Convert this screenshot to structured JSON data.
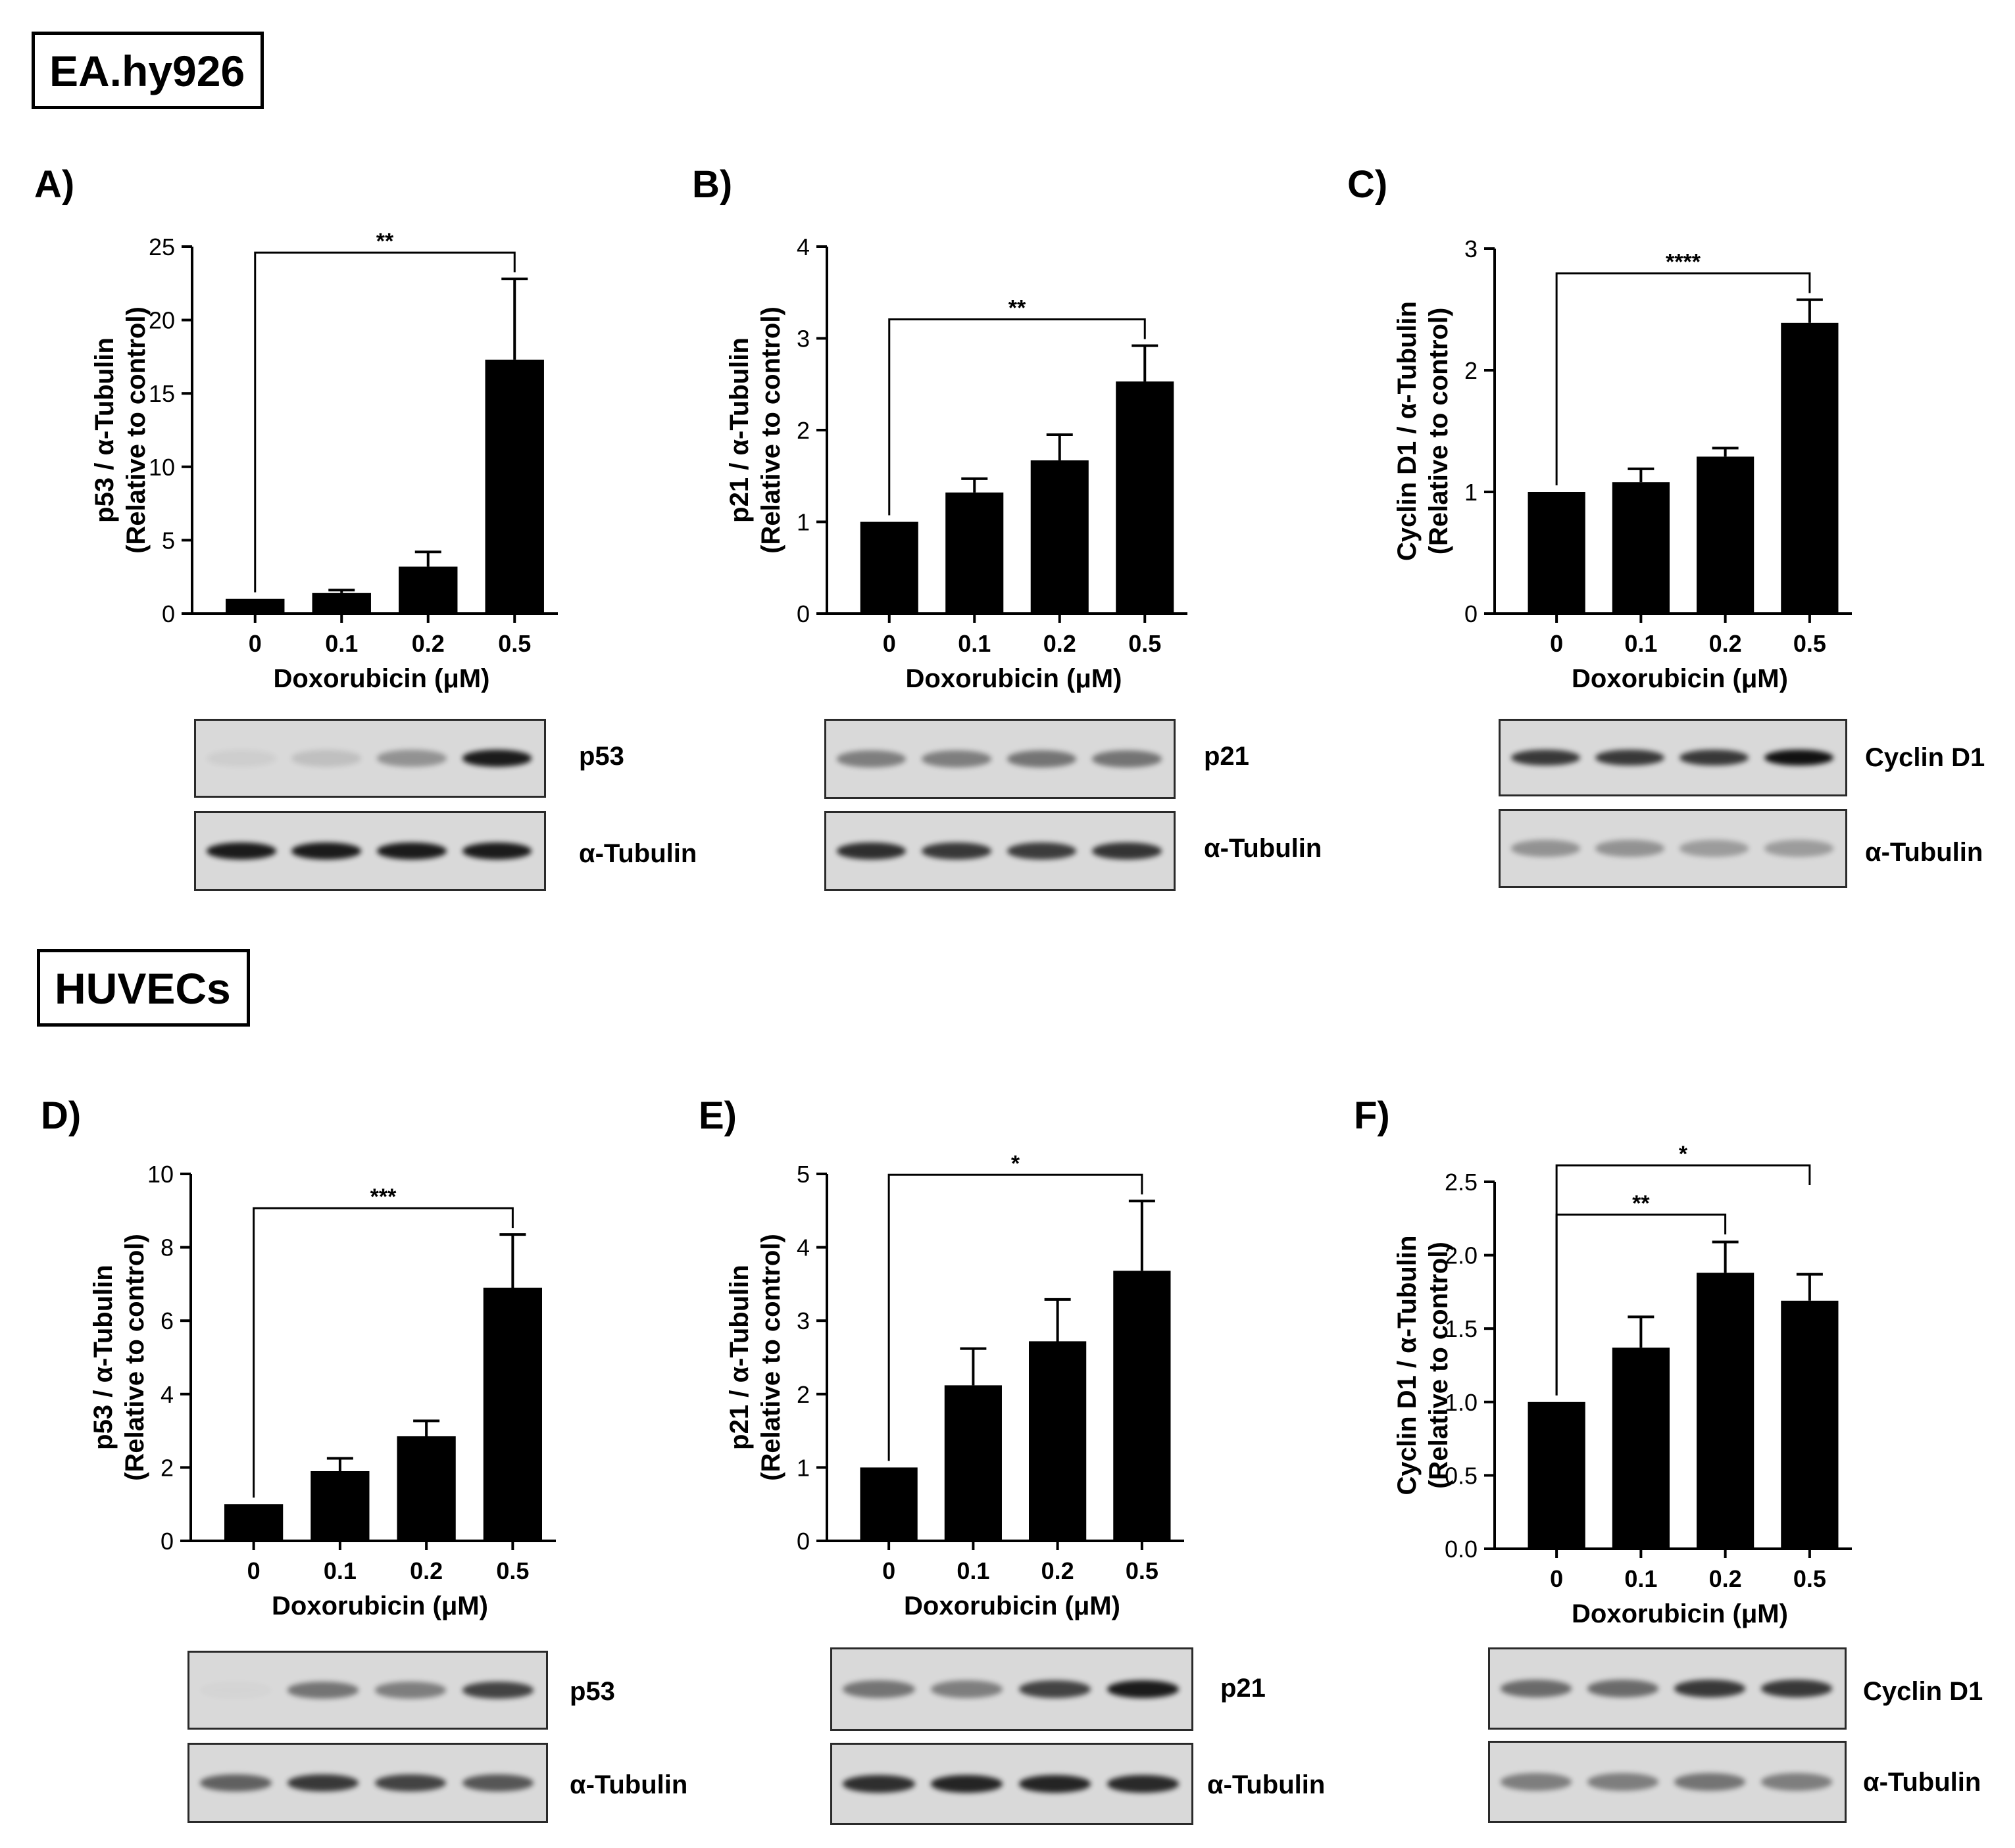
{
  "cell_lines": [
    {
      "name": "EA.hy926"
    },
    {
      "name": "HUVECs"
    }
  ],
  "panels": [
    {
      "label": "A)",
      "blot_top": "p53",
      "blot_bottom": "α-Tubulin"
    },
    {
      "label": "B)",
      "blot_top": "p21",
      "blot_bottom": "α-Tubulin"
    },
    {
      "label": "C)",
      "blot_top": "Cyclin D1",
      "blot_bottom": "α-Tubulin"
    },
    {
      "label": "D)",
      "blot_top": "p53",
      "blot_bottom": "α-Tubulin"
    },
    {
      "label": "E)",
      "blot_top": "p21",
      "blot_bottom": "α-Tubulin"
    },
    {
      "label": "F)",
      "blot_top": "Cyclin D1",
      "blot_bottom": "α-Tubulin"
    }
  ],
  "chart_data": [
    {
      "type": "bar",
      "panel": "A)",
      "cell_line": "EA.hy926",
      "categories": [
        "0",
        "0.1",
        "0.2",
        "0.5"
      ],
      "values": [
        1.0,
        1.4,
        3.2,
        17.3
      ],
      "errors": [
        0,
        0.2,
        1.0,
        5.5
      ],
      "ylim": [
        0,
        25
      ],
      "yticks": [
        "0",
        "5",
        "10",
        "15",
        "20",
        "25"
      ],
      "ylabel_line1": "p53 / α-Tubulin",
      "ylabel_line2": "(Relative to control)",
      "xlabel": "Doxorubicin (μM)",
      "significance": [
        {
          "from": 0,
          "to": 3,
          "label": "**"
        }
      ]
    },
    {
      "type": "bar",
      "panel": "B)",
      "cell_line": "EA.hy926",
      "categories": [
        "0",
        "0.1",
        "0.2",
        "0.5"
      ],
      "values": [
        1.0,
        1.32,
        1.67,
        2.53
      ],
      "errors": [
        0,
        0.15,
        0.28,
        0.39
      ],
      "ylim": [
        0,
        4
      ],
      "yticks": [
        "0",
        "1",
        "2",
        "3",
        "4"
      ],
      "ylabel_line1": "p21 / α-Tubulin",
      "ylabel_line2": "(Relative to control)",
      "xlabel": "Doxorubicin (μM)",
      "significance": [
        {
          "from": 0,
          "to": 3,
          "label": "**"
        }
      ]
    },
    {
      "type": "bar",
      "panel": "C)",
      "cell_line": "EA.hy926",
      "categories": [
        "0",
        "0.1",
        "0.2",
        "0.5"
      ],
      "values": [
        1.0,
        1.08,
        1.29,
        2.39
      ],
      "errors": [
        0,
        0.11,
        0.07,
        0.19
      ],
      "ylim": [
        0,
        3
      ],
      "yticks": [
        "0",
        "1",
        "2",
        "3"
      ],
      "ylabel_line1": "Cyclin D1 / α-Tubulin",
      "ylabel_line2": "(Relative to control)",
      "xlabel": "Doxorubicin (μM)",
      "significance": [
        {
          "from": 0,
          "to": 3,
          "label": "****"
        }
      ]
    },
    {
      "type": "bar",
      "panel": "D)",
      "cell_line": "HUVECs",
      "categories": [
        "0",
        "0.1",
        "0.2",
        "0.5"
      ],
      "values": [
        1.0,
        1.9,
        2.85,
        6.9
      ],
      "errors": [
        0,
        0.35,
        0.42,
        1.45
      ],
      "ylim": [
        0,
        10
      ],
      "yticks": [
        "0",
        "2",
        "4",
        "6",
        "8",
        "10"
      ],
      "ylabel_line1": "p53 / α-Tubulin",
      "ylabel_line2": "(Relative to control)",
      "xlabel": "Doxorubicin (μM)",
      "significance": [
        {
          "from": 0,
          "to": 3,
          "label": "***"
        }
      ]
    },
    {
      "type": "bar",
      "panel": "E)",
      "cell_line": "HUVECs",
      "categories": [
        "0",
        "0.1",
        "0.2",
        "0.5"
      ],
      "values": [
        1.0,
        2.12,
        2.72,
        3.68
      ],
      "errors": [
        0,
        0.5,
        0.57,
        0.95
      ],
      "ylim": [
        0,
        5
      ],
      "yticks": [
        "0",
        "1",
        "2",
        "3",
        "4",
        "5"
      ],
      "ylabel_line1": "p21 / α-Tubulin",
      "ylabel_line2": "(Relative to control)",
      "xlabel": "Doxorubicin (μM)",
      "significance": [
        {
          "from": 0,
          "to": 3,
          "label": "*"
        }
      ]
    },
    {
      "type": "bar",
      "panel": "F)",
      "cell_line": "HUVECs",
      "categories": [
        "0",
        "0.1",
        "0.2",
        "0.5"
      ],
      "values": [
        1.0,
        1.37,
        1.88,
        1.69
      ],
      "errors": [
        0,
        0.21,
        0.21,
        0.18
      ],
      "ylim": [
        0,
        2.5
      ],
      "yticks": [
        "0.0",
        "0.5",
        "1.0",
        "1.5",
        "2.0",
        "2.5"
      ],
      "ylabel_line1": "Cyclin D1 / α-Tubulin",
      "ylabel_line2": "(Relative to control)",
      "xlabel": "Doxorubicin (μM)",
      "significance": [
        {
          "from": 0,
          "to": 2,
          "label": "**"
        },
        {
          "from": 0,
          "to": 3,
          "label": "*"
        }
      ]
    }
  ],
  "colors": {
    "bar": "#000000",
    "blot_bg": "#d9d9d9",
    "band": "#111111"
  }
}
